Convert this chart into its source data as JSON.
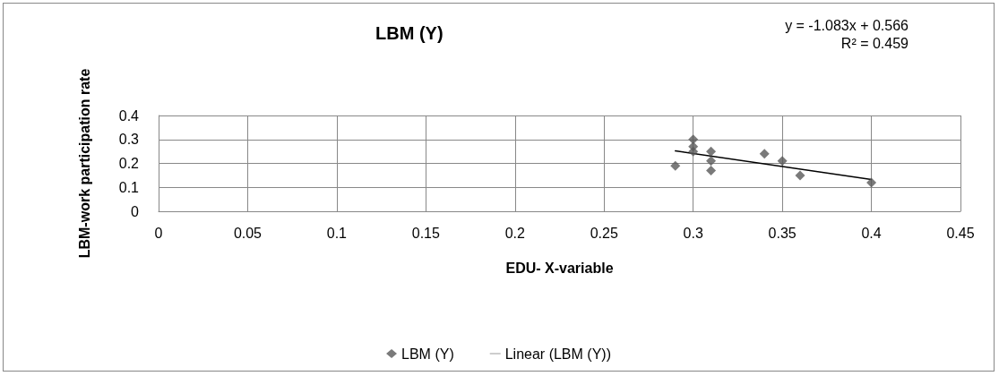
{
  "chart_data": {
    "type": "scatter",
    "title": "LBM (Y)",
    "xlabel": "EDU- X-variable",
    "ylabel": "LBM-work participation rate",
    "annotations": [
      "y = -1.083x + 0.566",
      "R² = 0.459"
    ],
    "series": [
      {
        "name": "LBM (Y)",
        "color": "#595959",
        "marker": "diamond",
        "x": [
          0.29,
          0.3,
          0.3,
          0.3,
          0.31,
          0.31,
          0.31,
          0.34,
          0.35,
          0.36,
          0.4
        ],
        "values": [
          0.19,
          0.3,
          0.27,
          0.25,
          0.25,
          0.21,
          0.17,
          0.24,
          0.21,
          0.15,
          0.12
        ]
      },
      {
        "name": "Linear (LBM (Y))",
        "type": "line",
        "color": "#000000",
        "marker": "none",
        "line_style": "solid",
        "x": [
          0.29,
          0.4
        ],
        "values": [
          0.252,
          0.133
        ]
      }
    ],
    "xlim": [
      0,
      0.45
    ],
    "xticks": [
      0,
      0.05,
      0.1,
      0.15,
      0.2,
      0.25,
      0.3,
      0.35,
      0.4,
      0.45
    ],
    "ylim": [
      0,
      0.4
    ],
    "yticks": [
      0,
      0.1,
      0.2,
      0.3,
      0.4
    ],
    "grid": true,
    "legend": "bottom"
  }
}
